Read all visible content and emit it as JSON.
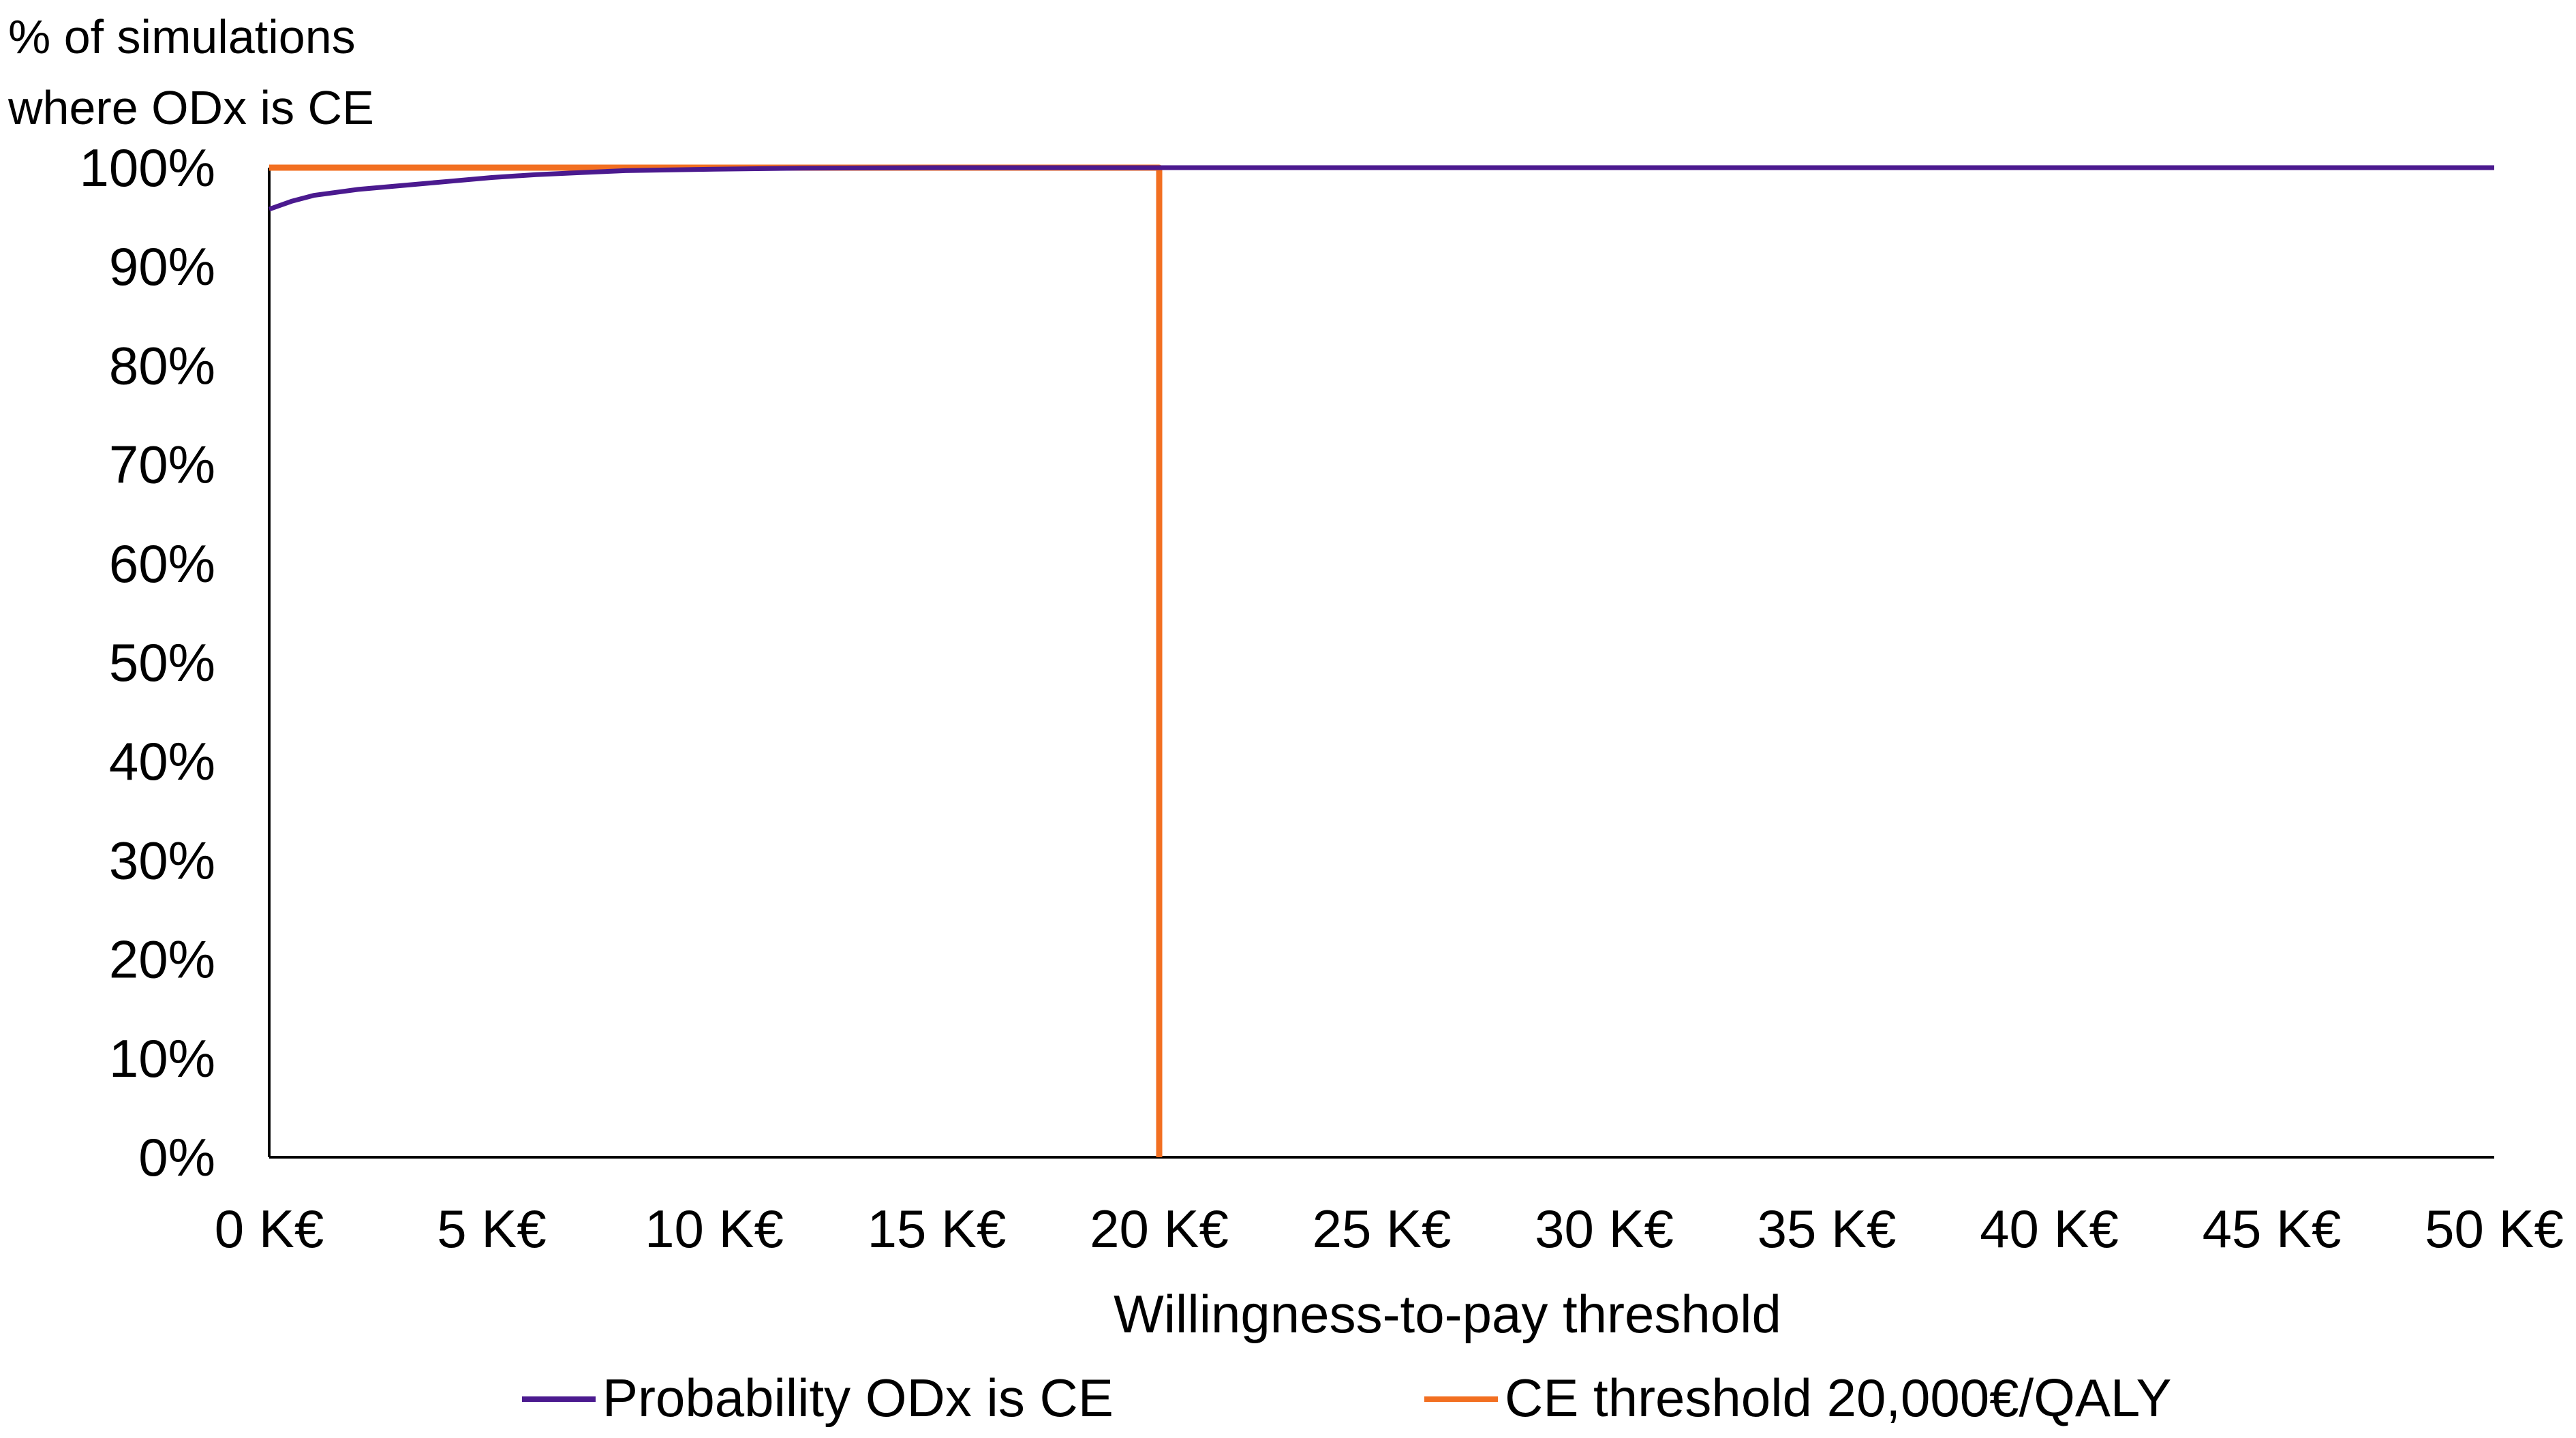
{
  "chart_data": {
    "type": "line",
    "ylabel_lines": [
      "% of simulations",
      "where ODx is CE"
    ],
    "xlabel": "Willingness-to-pay  threshold",
    "x_ticks": [
      "0 K€",
      "5 K€",
      "10 K€",
      "15 K€",
      "20 K€",
      "25 K€",
      "30 K€",
      "35 K€",
      "40 K€",
      "45 K€",
      "50 K€"
    ],
    "y_ticks": [
      "0%",
      "10%",
      "20%",
      "30%",
      "40%",
      "50%",
      "60%",
      "70%",
      "80%",
      "90%",
      "100%"
    ],
    "xlim": [
      0,
      50
    ],
    "ylim": [
      0,
      100
    ],
    "grid": false,
    "legend_position": "bottom",
    "series": [
      {
        "name": "Probability ODx is CE",
        "color": "#4b1a8f",
        "x": [
          0,
          0.5,
          1,
          2,
          3,
          4,
          5,
          6,
          7,
          8,
          10,
          12,
          15,
          20,
          30,
          40,
          50
        ],
        "y": [
          95.8,
          96.6,
          97.2,
          97.8,
          98.2,
          98.6,
          99.0,
          99.3,
          99.5,
          99.7,
          99.85,
          99.95,
          100,
          100,
          100,
          100,
          100
        ]
      },
      {
        "name": "CE threshold  20,000€/QALY",
        "color": "#f26f21",
        "x": [
          0,
          20,
          20
        ],
        "y": [
          100,
          100,
          0
        ]
      }
    ]
  }
}
